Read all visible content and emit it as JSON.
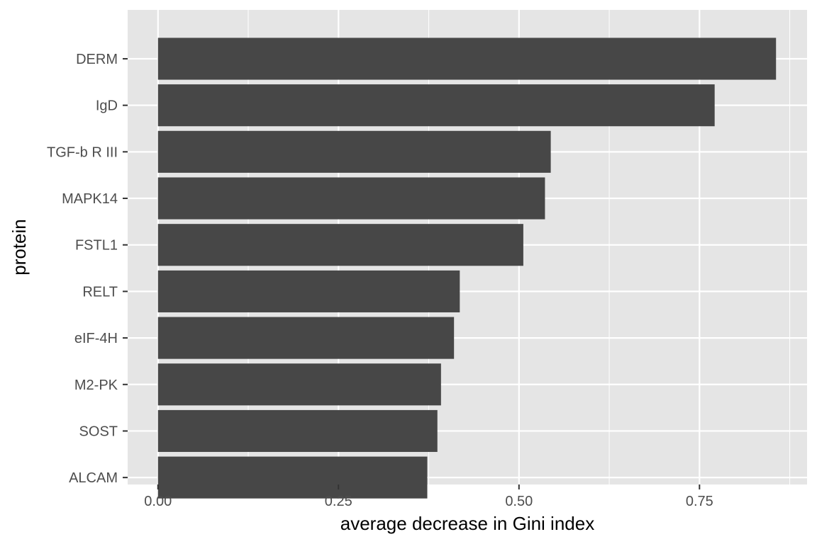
{
  "chart_data": {
    "type": "bar",
    "orientation": "horizontal",
    "title": "",
    "xlabel": "average decrease in Gini index",
    "ylabel": "protein",
    "categories": [
      "DERM",
      "IgD",
      "TGF-b R III",
      "MAPK14",
      "FSTL1",
      "RELT",
      "eIF-4H",
      "M2-PK",
      "SOST",
      "ALCAM"
    ],
    "values": [
      0.856,
      0.771,
      0.544,
      0.536,
      0.506,
      0.418,
      0.41,
      0.392,
      0.387,
      0.373
    ],
    "xlim": [
      -0.042,
      0.899
    ],
    "xticks": [
      0,
      0.25,
      0.5,
      0.75
    ],
    "xtick_labels": [
      "0.00",
      "0.25",
      "0.50",
      "0.75"
    ],
    "grid": true,
    "legend": "none",
    "colors": {
      "bar": "#474747",
      "panel": "#e5e5e5",
      "grid": "#ffffff",
      "tick_text": "#4d4d4d",
      "title_text": "#000000"
    }
  }
}
